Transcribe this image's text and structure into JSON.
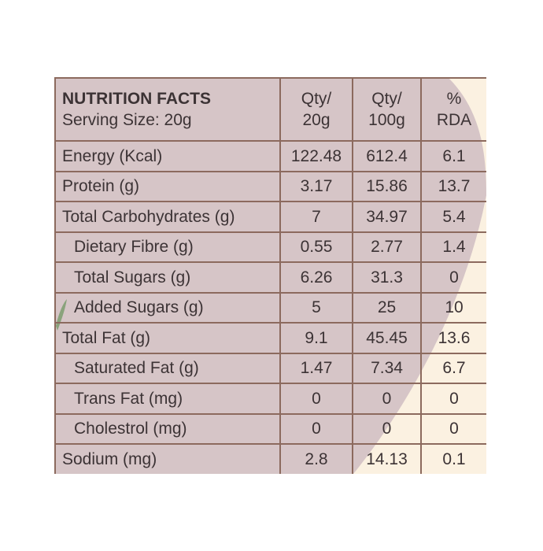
{
  "colors": {
    "background": "#ffffff",
    "table_fill": "#d6c5c7",
    "cream": "#fbf1e1",
    "border": "#8c6a5e",
    "text": "#3c3335",
    "leaf": "#8aa37c"
  },
  "header": {
    "title": "NUTRITION FACTS",
    "serving": "Serving Size: 20g",
    "col1": [
      "Qty/",
      "20g"
    ],
    "col2": [
      "Qty/",
      "100g"
    ],
    "col3": [
      "%",
      "RDA"
    ]
  },
  "rows": [
    {
      "label": "Energy (Kcal)",
      "q20": "122.48",
      "q100": "612.4",
      "rda": "6.1",
      "sub": false
    },
    {
      "label": "Protein (g)",
      "q20": "3.17",
      "q100": "15.86",
      "rda": "13.7",
      "sub": false
    },
    {
      "label": "Total Carbohydrates (g)",
      "q20": "7",
      "q100": "34.97",
      "rda": "5.4",
      "sub": false
    },
    {
      "label": "Dietary Fibre (g)",
      "q20": "0.55",
      "q100": "2.77",
      "rda": "1.4",
      "sub": true
    },
    {
      "label": "Total Sugars (g)",
      "q20": "6.26",
      "q100": "31.3",
      "rda": "0",
      "sub": true
    },
    {
      "label": "Added Sugars (g)",
      "q20": "5",
      "q100": "25",
      "rda": "10",
      "sub": true
    },
    {
      "label": "Total Fat (g)",
      "q20": "9.1",
      "q100": "45.45",
      "rda": "13.6",
      "sub": false
    },
    {
      "label": "Saturated Fat (g)",
      "q20": "1.47",
      "q100": "7.34",
      "rda": "6.7",
      "sub": true
    },
    {
      "label": "Trans Fat (mg)",
      "q20": "0",
      "q100": "0",
      "rda": "0",
      "sub": true
    },
    {
      "label": "Cholestrol (mg)",
      "q20": "0",
      "q100": "0",
      "rda": "0",
      "sub": true
    },
    {
      "label": "Sodium (mg)",
      "q20": "2.8",
      "q100": "14.13",
      "rda": "0.1",
      "sub": false
    }
  ]
}
